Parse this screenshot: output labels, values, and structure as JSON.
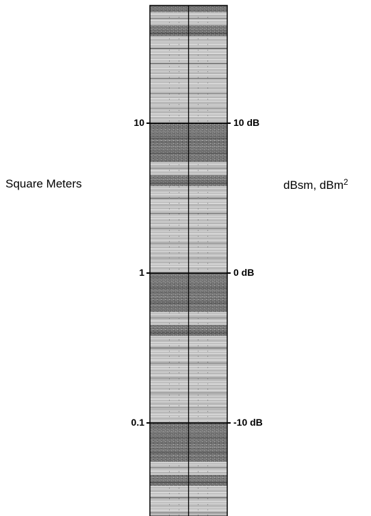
{
  "left_axis": {
    "title": "Square Meters",
    "ticks": [
      {
        "label": "10",
        "value": 10
      },
      {
        "label": "1",
        "value": 1
      },
      {
        "label": "0.1",
        "value": 0.1
      }
    ]
  },
  "right_axis": {
    "title_base": "dBsm, dBm",
    "title_sup": "2",
    "ticks": [
      {
        "label": "10 dB",
        "value": 10
      },
      {
        "label": "0 dB",
        "value": 0
      },
      {
        "label": "-10 dB",
        "value": -10
      }
    ]
  },
  "scale": {
    "min_sqm": 0.05,
    "max_sqm": 30,
    "scale_type": "log"
  }
}
